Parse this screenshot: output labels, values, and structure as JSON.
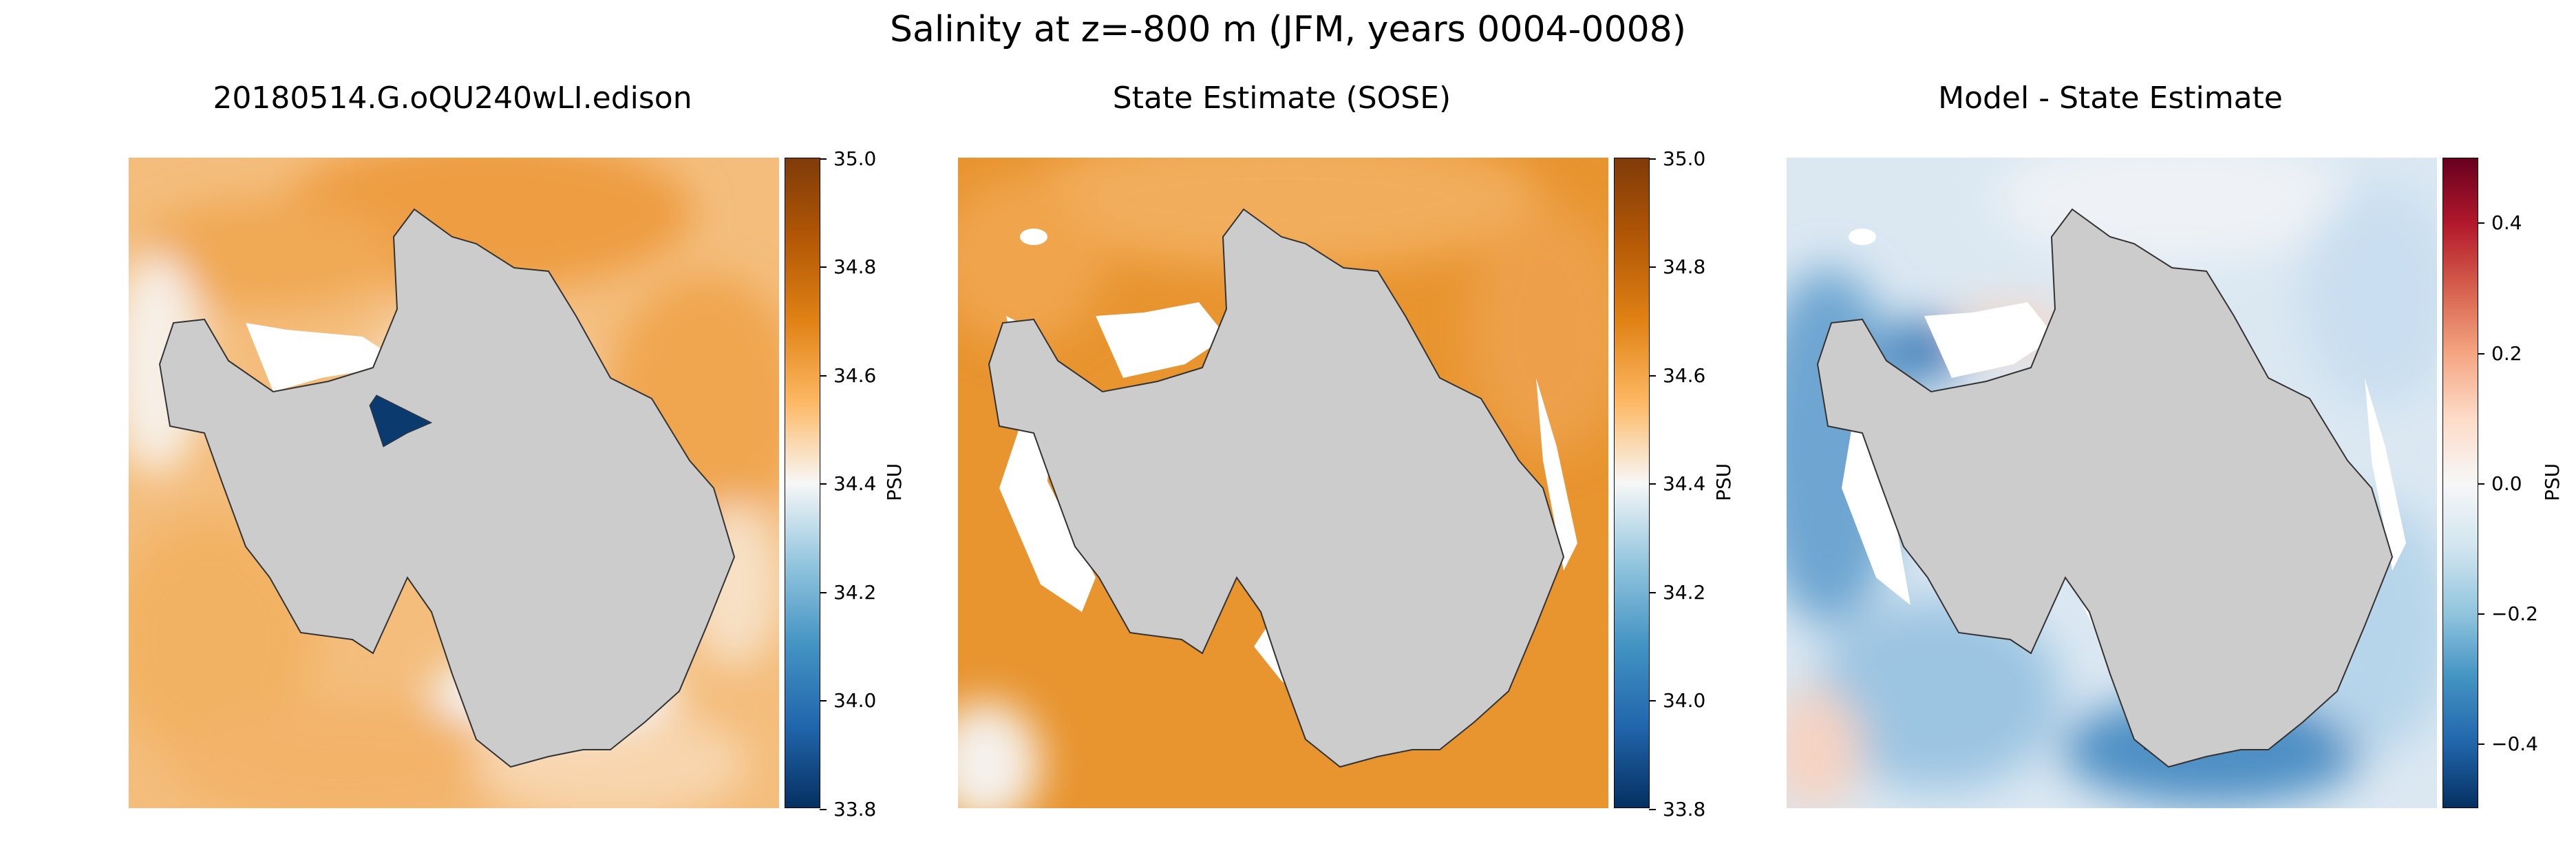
{
  "figure": {
    "suptitle": "Salinity at z=-800 m (JFM, years 0004-0008)"
  },
  "panels": [
    {
      "title": "20180514.G.oQU240wLI.edison",
      "field": "Model",
      "ocean_color": "#f3b66f",
      "colorbar": {
        "label": "PSU",
        "range": [
          33.8,
          35.0
        ],
        "cmap": "orange-blue",
        "ticks": [
          "35.0",
          "34.8",
          "34.6",
          "34.4",
          "34.2",
          "34.0",
          "33.8"
        ]
      }
    },
    {
      "title": "State Estimate (SOSE)",
      "field": "SOSE",
      "ocean_color": "#e89432",
      "colorbar": {
        "label": "PSU",
        "range": [
          33.8,
          35.0
        ],
        "cmap": "orange-blue",
        "ticks": [
          "35.0",
          "34.8",
          "34.6",
          "34.4",
          "34.2",
          "34.0",
          "33.8"
        ]
      }
    },
    {
      "title": "Model - State Estimate",
      "field": "Difference",
      "ocean_color": "#cfe1ee",
      "colorbar": {
        "label": "PSU",
        "range": [
          -0.5,
          0.5
        ],
        "cmap": "red-blue",
        "ticks": [
          "0.4",
          "0.2",
          "0.0",
          "−0.2",
          "−0.4"
        ]
      }
    }
  ],
  "colors": {
    "land": "#cccccc",
    "coast": "#333333"
  }
}
